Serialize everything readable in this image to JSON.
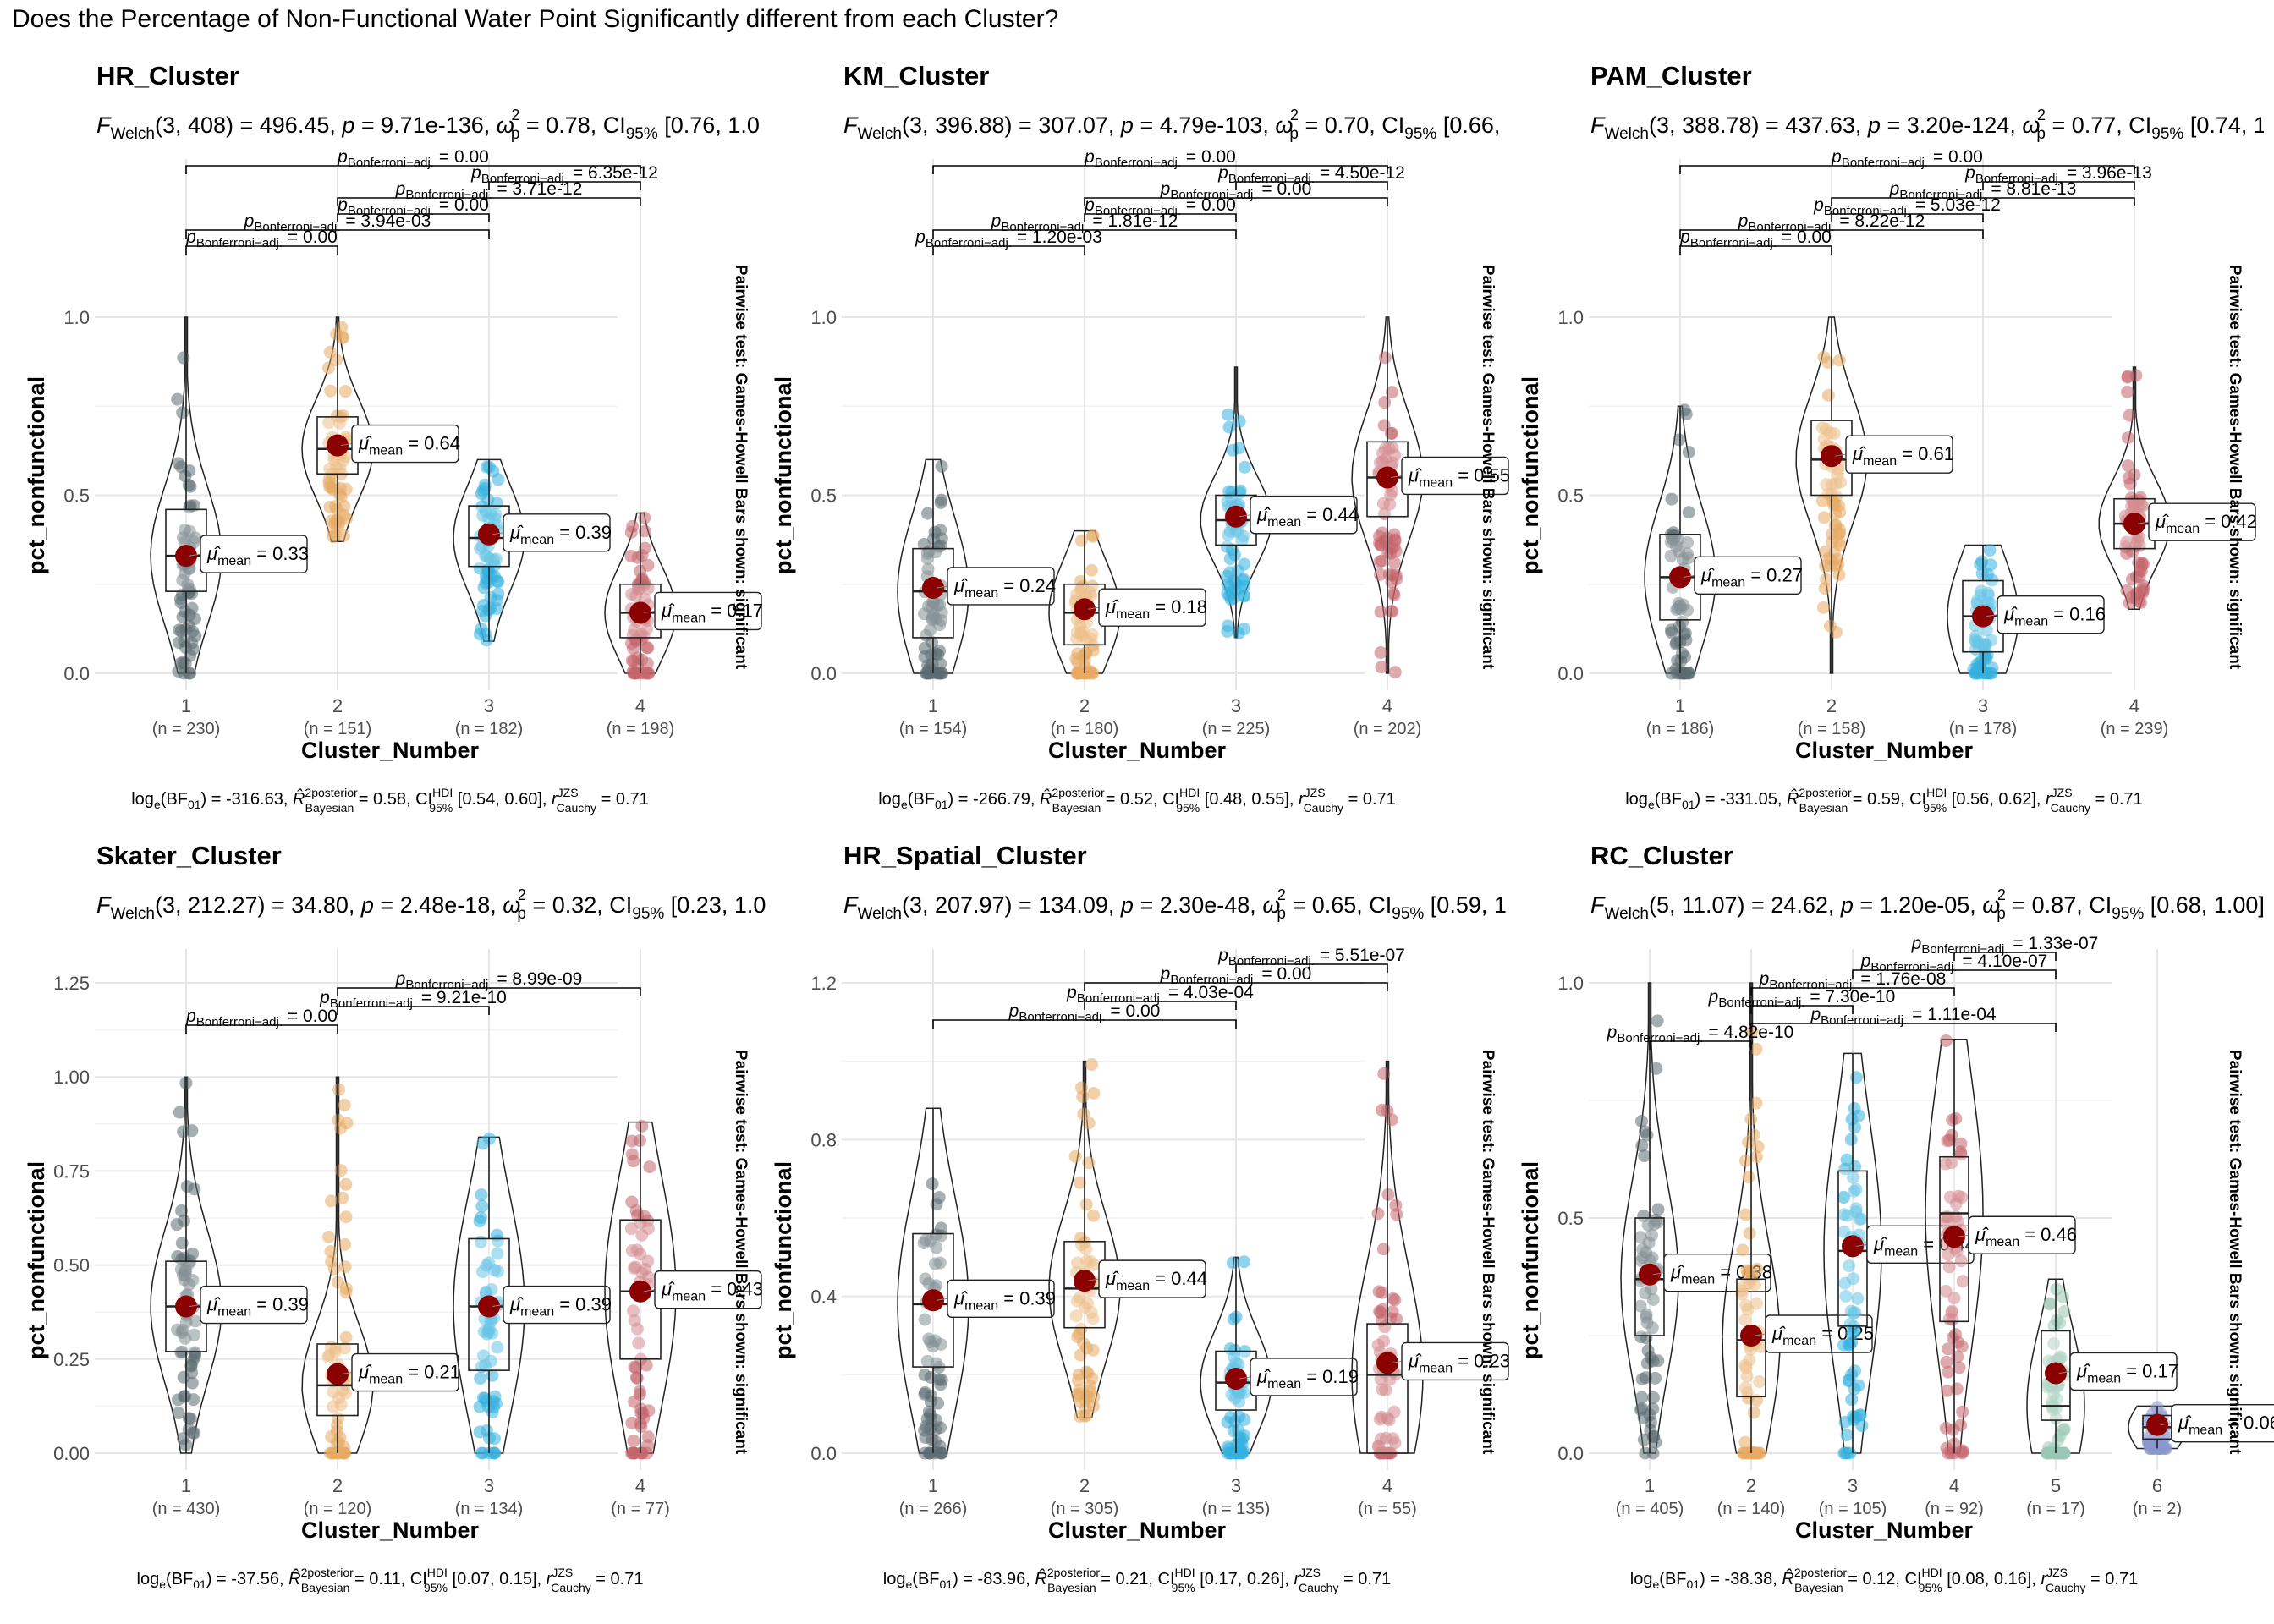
{
  "figure": {
    "title": "Does the Percentage of Non-Functional Water Point Significantly different from each Cluster?"
  },
  "palette": [
    "#5b6b71",
    "#e8a962",
    "#35b0de",
    "#c5656b",
    "#99c7b5",
    "#8898cc"
  ],
  "chart_data": [
    {
      "type": "violin-box",
      "title": "HR_Cluster",
      "subtitle": {
        "df": "3, 408",
        "stat": "496.45",
        "p": "9.71e-136",
        "omega": "0.78",
        "ci": "[0.76, 1.0"
      },
      "xlabel": "Cluster_Number",
      "ylabel": "pct_nonfunctional",
      "side_label": "Pairwise test: Games-Howell Bars shown: significant",
      "ylim": [
        0,
        1
      ],
      "yticks": [
        "0.0",
        "0.5",
        "1.0"
      ],
      "categories": [
        "1",
        "2",
        "3",
        "4"
      ],
      "n": [
        "(n = 230)",
        "(n = 151)",
        "(n = 182)",
        "(n = 198)"
      ],
      "means": [
        0.33,
        0.64,
        0.39,
        0.17
      ],
      "mean_labels": [
        "0.33",
        "0.64",
        "0.39",
        "0.17"
      ],
      "ranges": [
        [
          0,
          1.0
        ],
        [
          0.37,
          1.0
        ],
        [
          0.09,
          0.6
        ],
        [
          0,
          0.45
        ]
      ],
      "boxes": [
        [
          0.23,
          0.33,
          0.46
        ],
        [
          0.56,
          0.63,
          0.72
        ],
        [
          0.3,
          0.38,
          0.47
        ],
        [
          0.1,
          0.17,
          0.25
        ]
      ],
      "pairwise": [
        {
          "pair": [
            1,
            4
          ],
          "label": "0.00"
        },
        {
          "pair": [
            3,
            4
          ],
          "label": "6.35e-12"
        },
        {
          "pair": [
            2,
            4
          ],
          "label": "3.71e-12"
        },
        {
          "pair": [
            2,
            3
          ],
          "label": "0.00"
        },
        {
          "pair": [
            1,
            3
          ],
          "label": "3.94e-03"
        },
        {
          "pair": [
            1,
            2
          ],
          "label": "0.00"
        }
      ],
      "caption": {
        "bf": "-316.63",
        "r2": "0.58",
        "ci": "[0.54, 0.60]",
        "r": "0.71"
      }
    },
    {
      "type": "violin-box",
      "title": "KM_Cluster",
      "subtitle": {
        "df": "3, 396.88",
        "stat": "307.07",
        "p": "4.79e-103",
        "omega": "0.70",
        "ci": "[0.66,"
      },
      "xlabel": "Cluster_Number",
      "ylabel": "pct_nonfunctional",
      "side_label": "Pairwise test: Games-Howell Bars shown: significant",
      "ylim": [
        0,
        1
      ],
      "yticks": [
        "0.0",
        "0.5",
        "1.0"
      ],
      "categories": [
        "1",
        "2",
        "3",
        "4"
      ],
      "n": [
        "(n = 154)",
        "(n = 180)",
        "(n = 225)",
        "(n = 202)"
      ],
      "means": [
        0.24,
        0.18,
        0.44,
        0.55
      ],
      "mean_labels": [
        "0.24",
        "0.18",
        "0.44",
        "0.55"
      ],
      "ranges": [
        [
          0,
          0.6
        ],
        [
          0,
          0.4
        ],
        [
          0.1,
          0.86
        ],
        [
          0,
          1.0
        ]
      ],
      "boxes": [
        [
          0.1,
          0.23,
          0.35
        ],
        [
          0.08,
          0.17,
          0.25
        ],
        [
          0.36,
          0.43,
          0.5
        ],
        [
          0.44,
          0.55,
          0.65
        ]
      ],
      "pairwise": [
        {
          "pair": [
            1,
            4
          ],
          "label": "0.00"
        },
        {
          "pair": [
            3,
            4
          ],
          "label": "4.50e-12"
        },
        {
          "pair": [
            2,
            4
          ],
          "label": "0.00"
        },
        {
          "pair": [
            2,
            3
          ],
          "label": "0.00"
        },
        {
          "pair": [
            1,
            3
          ],
          "label": "1.81e-12"
        },
        {
          "pair": [
            1,
            2
          ],
          "label": "1.20e-03"
        }
      ],
      "caption": {
        "bf": "-266.79",
        "r2": "0.52",
        "ci": "[0.48, 0.55]",
        "r": "0.71"
      }
    },
    {
      "type": "violin-box",
      "title": "PAM_Cluster",
      "subtitle": {
        "df": "3, 388.78",
        "stat": "437.63",
        "p": "3.20e-124",
        "omega": "0.77",
        "ci": "[0.74, 1"
      },
      "xlabel": "Cluster_Number",
      "ylabel": "pct_nonfunctional",
      "side_label": "Pairwise test: Games-Howell Bars shown: significant",
      "ylim": [
        0,
        1
      ],
      "yticks": [
        "0.0",
        "0.5",
        "1.0"
      ],
      "categories": [
        "1",
        "2",
        "3",
        "4"
      ],
      "n": [
        "(n = 186)",
        "(n = 158)",
        "(n = 178)",
        "(n = 239)"
      ],
      "means": [
        0.27,
        0.61,
        0.16,
        0.42
      ],
      "mean_labels": [
        "0.27",
        "0.61",
        "0.16",
        "0.42"
      ],
      "ranges": [
        [
          0,
          0.75
        ],
        [
          0,
          1.0
        ],
        [
          0,
          0.36
        ],
        [
          0.18,
          0.86
        ]
      ],
      "boxes": [
        [
          0.15,
          0.27,
          0.39
        ],
        [
          0.5,
          0.6,
          0.71
        ],
        [
          0.06,
          0.16,
          0.26
        ],
        [
          0.35,
          0.42,
          0.49
        ]
      ],
      "pairwise": [
        {
          "pair": [
            1,
            4
          ],
          "label": "0.00"
        },
        {
          "pair": [
            3,
            4
          ],
          "label": "3.96e-13"
        },
        {
          "pair": [
            2,
            4
          ],
          "label": "8.81e-13"
        },
        {
          "pair": [
            2,
            3
          ],
          "label": "5.03e-12"
        },
        {
          "pair": [
            1,
            3
          ],
          "label": "8.22e-12"
        },
        {
          "pair": [
            1,
            2
          ],
          "label": "0.00"
        }
      ],
      "caption": {
        "bf": "-331.05",
        "r2": "0.59",
        "ci": "[0.56, 0.62]",
        "r": "0.71"
      }
    },
    {
      "type": "violin-box",
      "title": "Skater_Cluster",
      "subtitle": {
        "df": "3, 212.27",
        "stat": "34.80",
        "p": "2.48e-18",
        "omega": "0.32",
        "ci": "[0.23, 1.0"
      },
      "xlabel": "Cluster_Number",
      "ylabel": "pct_nonfunctional",
      "side_label": "Pairwise test: Games-Howell Bars shown: significant",
      "ylim": [
        0,
        1.25
      ],
      "yticks": [
        "0.00",
        "0.25",
        "0.50",
        "0.75",
        "1.00",
        "1.25"
      ],
      "categories": [
        "1",
        "2",
        "3",
        "4"
      ],
      "n": [
        "(n = 430)",
        "(n = 120)",
        "(n = 134)",
        "(n = 77)"
      ],
      "means": [
        0.39,
        0.21,
        0.39,
        0.43
      ],
      "mean_labels": [
        "0.39",
        "0.21",
        "0.39",
        "0.43"
      ],
      "ranges": [
        [
          0,
          1.0
        ],
        [
          0,
          1.0
        ],
        [
          0,
          0.84
        ],
        [
          0,
          0.88
        ]
      ],
      "boxes": [
        [
          0.27,
          0.39,
          0.51
        ],
        [
          0.1,
          0.18,
          0.29
        ],
        [
          0.22,
          0.39,
          0.57
        ],
        [
          0.25,
          0.43,
          0.62
        ]
      ],
      "pairwise": [
        {
          "pair": [
            2,
            4
          ],
          "label": "8.99e-09"
        },
        {
          "pair": [
            2,
            3
          ],
          "label": "9.21e-10"
        },
        {
          "pair": [
            1,
            2
          ],
          "label": "0.00"
        }
      ],
      "caption": {
        "bf": "-37.56",
        "r2": "0.11",
        "ci": "[0.07, 0.15]",
        "r": "0.71"
      }
    },
    {
      "type": "violin-box",
      "title": "HR_Spatial_Cluster",
      "subtitle": {
        "df": "3, 207.97",
        "stat": "134.09",
        "p": "2.30e-48",
        "omega": "0.65",
        "ci": "[0.59, 1"
      },
      "xlabel": "Cluster_Number",
      "ylabel": "pct_nonfunctional",
      "side_label": "Pairwise test: Games-Howell Bars shown: significant",
      "ylim": [
        0,
        1.2
      ],
      "yticks": [
        "0.0",
        "0.4",
        "0.8",
        "1.2"
      ],
      "categories": [
        "1",
        "2",
        "3",
        "4"
      ],
      "n": [
        "(n = 266)",
        "(n = 305)",
        "(n = 135)",
        "(n = 55)"
      ],
      "means": [
        0.39,
        0.44,
        0.19,
        0.23
      ],
      "mean_labels": [
        "0.39",
        "0.44",
        "0.19",
        "0.23"
      ],
      "ranges": [
        [
          0,
          0.88
        ],
        [
          0.09,
          1.0
        ],
        [
          0,
          0.5
        ],
        [
          0,
          1.0
        ]
      ],
      "boxes": [
        [
          0.22,
          0.38,
          0.56
        ],
        [
          0.32,
          0.42,
          0.54
        ],
        [
          0.11,
          0.18,
          0.26
        ],
        [
          0.0,
          0.2,
          0.33
        ]
      ],
      "pairwise": [
        {
          "pair": [
            3,
            4
          ],
          "label": "5.51e-07"
        },
        {
          "pair": [
            2,
            4
          ],
          "label": "0.00"
        },
        {
          "pair": [
            2,
            3
          ],
          "label": "4.03e-04"
        },
        {
          "pair": [
            1,
            3
          ],
          "label": "0.00"
        }
      ],
      "caption": {
        "bf": "-83.96",
        "r2": "0.21",
        "ci": "[0.17, 0.26]",
        "r": "0.71"
      }
    },
    {
      "type": "violin-box",
      "title": "RC_Cluster",
      "subtitle": {
        "df": "5, 11.07",
        "stat": "24.62",
        "p": "1.20e-05",
        "omega": "0.87",
        "ci": "[0.68, 1.00]"
      },
      "xlabel": "Cluster_Number",
      "ylabel": "pct_nonfunctional",
      "side_label": "Pairwise test: Games-Howell Bars shown: significant",
      "ylim": [
        0,
        1
      ],
      "yticks": [
        "0.0",
        "0.5",
        "1.0"
      ],
      "categories": [
        "1",
        "2",
        "3",
        "4",
        "5",
        "6"
      ],
      "n": [
        "(n = 405)",
        "(n = 140)",
        "(n = 105)",
        "(n = 92)",
        "(n = 17)",
        "(n = 2)"
      ],
      "means": [
        0.38,
        0.25,
        0.44,
        0.46,
        0.17,
        0.06
      ],
      "mean_labels": [
        "0.38",
        "0.25",
        "0.44",
        "0.46",
        "0.17",
        "0.06"
      ],
      "ranges": [
        [
          0,
          1.0
        ],
        [
          0,
          1.0
        ],
        [
          0,
          0.85
        ],
        [
          0,
          0.88
        ],
        [
          0,
          0.37
        ],
        [
          0.01,
          0.1
        ]
      ],
      "boxes": [
        [
          0.25,
          0.37,
          0.5
        ],
        [
          0.12,
          0.24,
          0.37
        ],
        [
          0.27,
          0.43,
          0.6
        ],
        [
          0.28,
          0.51,
          0.63
        ],
        [
          0.07,
          0.1,
          0.26
        ],
        [
          0.03,
          0.055,
          0.08
        ]
      ],
      "pairwise": [
        {
          "pair": [
            4,
            5
          ],
          "label": "1.33e-07"
        },
        {
          "pair": [
            3,
            5
          ],
          "label": "4.10e-07"
        },
        {
          "pair": [
            2,
            4
          ],
          "label": "1.76e-08"
        },
        {
          "pair": [
            2,
            3
          ],
          "label": "7.30e-10"
        },
        {
          "pair": [
            2,
            5
          ],
          "label": "1.11e-04"
        },
        {
          "pair": [
            1,
            2
          ],
          "label": "4.82e-10"
        }
      ],
      "caption": {
        "bf": "-38.38",
        "r2": "0.12",
        "ci": "[0.08, 0.16]",
        "r": "0.71"
      }
    }
  ]
}
